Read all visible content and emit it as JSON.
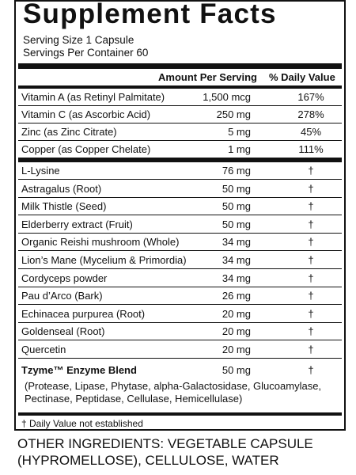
{
  "title": "Supplement Facts",
  "serving_size": "Serving Size 1 Capsule",
  "servings_per_container": "Servings Per Container 60",
  "columns": {
    "amount": "Amount Per Serving",
    "dv": "% Daily Value"
  },
  "vitamins": [
    {
      "name": "Vitamin A (as Retinyl Palmitate)",
      "amount": "1,500 mcg",
      "dv": "167%"
    },
    {
      "name": "Vitamin C (as Ascorbic Acid)",
      "amount": "250 mg",
      "dv": "278%"
    },
    {
      "name": "Zinc (as Zinc Citrate)",
      "amount": "5 mg",
      "dv": "45%"
    },
    {
      "name": "Copper (as Copper Chelate)",
      "amount": "1 mg",
      "dv": "111%"
    }
  ],
  "ingredients": [
    {
      "name": "L-Lysine",
      "amount": "76 mg",
      "dv": "†"
    },
    {
      "name": "Astragalus (Root)",
      "amount": "50 mg",
      "dv": "†"
    },
    {
      "name": "Milk Thistle (Seed)",
      "amount": "50 mg",
      "dv": "†"
    },
    {
      "name": "Elderberry extract (Fruit)",
      "amount": "50 mg",
      "dv": "†"
    },
    {
      "name": "Organic Reishi mushroom (Whole)",
      "amount": "34 mg",
      "dv": "†"
    },
    {
      "name": "Lion’s Mane (Mycelium & Primordia)",
      "amount": "34 mg",
      "dv": "†"
    },
    {
      "name": "Cordyceps powder",
      "amount": "34 mg",
      "dv": "†"
    },
    {
      "name": "Pau d’Arco (Bark)",
      "amount": "26 mg",
      "dv": "†"
    },
    {
      "name": "Echinacea purpurea (Root)",
      "amount": "20 mg",
      "dv": "†"
    },
    {
      "name": "Goldenseal (Root)",
      "amount": "20 mg",
      "dv": "†"
    },
    {
      "name": "Quercetin",
      "amount": "20 mg",
      "dv": "†"
    }
  ],
  "blend": {
    "name": "Tzyme™ Enzyme Blend",
    "amount": "50 mg",
    "dv": "†",
    "description": "(Protease, Lipase, Phytase, alpha-Galactosidase, Glucoamylase, Pectinase, Peptidase, Cellulase, Hemicellulase)"
  },
  "footnote": "† Daily Value not established",
  "other_ingredients": "OTHER INGREDIENTS: VEGETABLE CAPSULE (HYPROMELLOSE), CELLULOSE, WATER"
}
